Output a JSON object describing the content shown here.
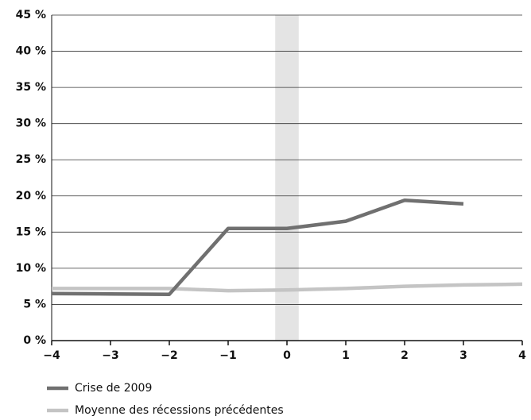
{
  "chart_data": {
    "type": "line",
    "x": [
      -4,
      -3,
      -2,
      -1,
      0,
      1,
      2,
      3,
      4
    ],
    "series": [
      {
        "name": "Crise de 2009",
        "color": "#707070",
        "values": [
          6.5,
          6.45,
          6.4,
          15.5,
          15.5,
          16.5,
          19.4,
          18.9,
          null
        ]
      },
      {
        "name": "Moyenne des récessions précédentes",
        "color": "#c4c4c4",
        "values": [
          7.2,
          7.2,
          7.2,
          6.9,
          7.0,
          7.2,
          7.5,
          7.7,
          7.8
        ]
      }
    ],
    "shaded_x": [
      -0.2,
      0.2
    ],
    "xlim": [
      -4,
      4
    ],
    "xticks": [
      {
        "value": -4,
        "label": "−4"
      },
      {
        "value": -3,
        "label": "−3"
      },
      {
        "value": -2,
        "label": "−2"
      },
      {
        "value": -1,
        "label": "−1"
      },
      0,
      1,
      2,
      3,
      4
    ],
    "ylim": [
      0,
      45
    ],
    "yticks": [
      {
        "value": 0,
        "label": "0 %"
      },
      {
        "value": 5,
        "label": "5 %"
      },
      {
        "value": 10,
        "label": "10 %"
      },
      {
        "value": 15,
        "label": "15 %"
      },
      {
        "value": 20,
        "label": "20 %"
      },
      {
        "value": 25,
        "label": "25 %"
      },
      {
        "value": 30,
        "label": "30 %"
      },
      {
        "value": 35,
        "label": "35 %"
      },
      {
        "value": 40,
        "label": "40 %"
      },
      {
        "value": 45,
        "label": "45 %"
      }
    ],
    "grid": true
  }
}
